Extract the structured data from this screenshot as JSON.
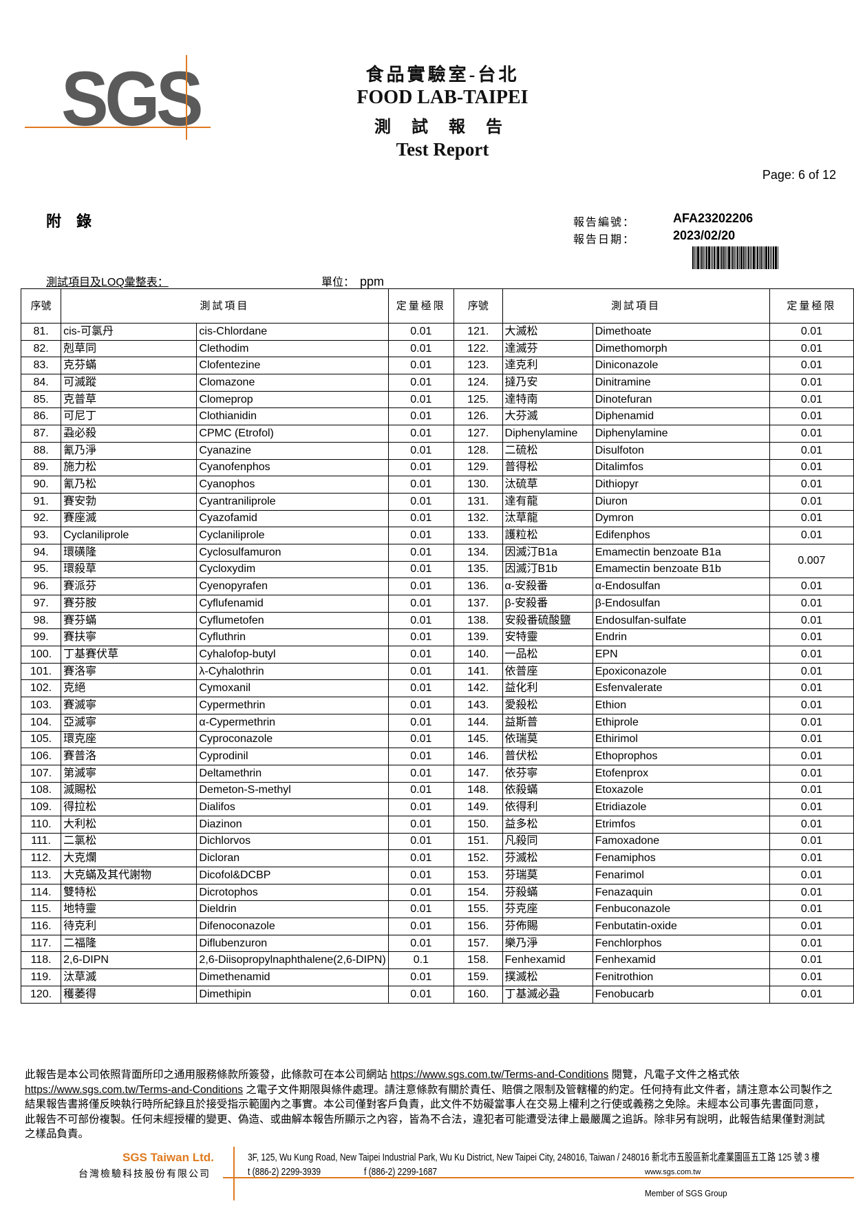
{
  "header": {
    "logo_text": "SGS",
    "title_zh": "食品實驗室-台北",
    "title_en": "FOOD LAB-TAIPEI",
    "report_zh": "測 試 報 告",
    "report_en": "Test Report",
    "page": "Page: 6 of 12"
  },
  "meta": {
    "appendix": "附錄",
    "report_no_label": "報告編號：",
    "report_no": "AFA23202206",
    "report_date_label": "報告日期：",
    "report_date": "2023/02/20",
    "section_title": "測試項目及LOQ彙整表：",
    "unit_label": "單位：",
    "unit": "ppm"
  },
  "table": {
    "headers": {
      "seq": "序號",
      "item": "測試項目",
      "loq": "定量極限"
    },
    "left": [
      [
        "81.",
        "cis-可氯丹",
        "cis-Chlordane",
        "0.01"
      ],
      [
        "82.",
        "剋草同",
        "Clethodim",
        "0.01"
      ],
      [
        "83.",
        "克芬蟎",
        "Clofentezine",
        "0.01"
      ],
      [
        "84.",
        "可滅蹤",
        "Clomazone",
        "0.01"
      ],
      [
        "85.",
        "克普草",
        "Clomeprop",
        "0.01"
      ],
      [
        "86.",
        "可尼丁",
        "Clothianidin",
        "0.01"
      ],
      [
        "87.",
        "蝨必殺",
        "CPMC (Etrofol)",
        "0.01"
      ],
      [
        "88.",
        "氰乃淨",
        "Cyanazine",
        "0.01"
      ],
      [
        "89.",
        "施力松",
        "Cyanofenphos",
        "0.01"
      ],
      [
        "90.",
        "氰乃松",
        "Cyanophos",
        "0.01"
      ],
      [
        "91.",
        "賽安勃",
        "Cyantraniliprole",
        "0.01"
      ],
      [
        "92.",
        "賽座滅",
        "Cyazofamid",
        "0.01"
      ],
      [
        "93.",
        "Cyclaniliprole",
        "Cyclaniliprole",
        "0.01"
      ],
      [
        "94.",
        "環磺隆",
        "Cyclosulfamuron",
        "0.01"
      ],
      [
        "95.",
        "環殺草",
        "Cycloxydim",
        "0.01"
      ],
      [
        "96.",
        "賽派芬",
        "Cyenopyrafen",
        "0.01"
      ],
      [
        "97.",
        "賽芬胺",
        "Cyflufenamid",
        "0.01"
      ],
      [
        "98.",
        "賽芬蟎",
        "Cyflumetofen",
        "0.01"
      ],
      [
        "99.",
        "賽扶寧",
        "Cyfluthrin",
        "0.01"
      ],
      [
        "100.",
        "丁基賽伏草",
        "Cyhalofop-butyl",
        "0.01"
      ],
      [
        "101.",
        "賽洛寧",
        "λ-Cyhalothrin",
        "0.01"
      ],
      [
        "102.",
        "克絕",
        "Cymoxanil",
        "0.01"
      ],
      [
        "103.",
        "賽滅寧",
        "Cypermethrin",
        "0.01"
      ],
      [
        "104.",
        "亞滅寧",
        "α-Cypermethrin",
        "0.01"
      ],
      [
        "105.",
        "環克座",
        "Cyproconazole",
        "0.01"
      ],
      [
        "106.",
        "賽普洛",
        "Cyprodinil",
        "0.01"
      ],
      [
        "107.",
        "第滅寧",
        "Deltamethrin",
        "0.01"
      ],
      [
        "108.",
        "滅賜松",
        "Demeton-S-methyl",
        "0.01"
      ],
      [
        "109.",
        "得拉松",
        "Dialifos",
        "0.01"
      ],
      [
        "110.",
        "大利松",
        "Diazinon",
        "0.01"
      ],
      [
        "111.",
        "二氯松",
        "Dichlorvos",
        "0.01"
      ],
      [
        "112.",
        "大克爛",
        "Dicloran",
        "0.01"
      ],
      [
        "113.",
        "大克蟎及其代謝物",
        "Dicofol&DCBP",
        "0.01"
      ],
      [
        "114.",
        "雙特松",
        "Dicrotophos",
        "0.01"
      ],
      [
        "115.",
        "地特靈",
        "Dieldrin",
        "0.01"
      ],
      [
        "116.",
        "待克利",
        "Difenoconazole",
        "0.01"
      ],
      [
        "117.",
        "二福隆",
        "Diflubenzuron",
        "0.01"
      ],
      [
        "118.",
        "2,6-DIPN",
        "2,6-Diisopropylnaphthalene(2,6-DIPN)",
        "0.1"
      ],
      [
        "119.",
        "汰草滅",
        "Dimethenamid",
        "0.01"
      ],
      [
        "120.",
        "穫萎得",
        "Dimethipin",
        "0.01"
      ]
    ],
    "right": [
      [
        "121.",
        "大滅松",
        "Dimethoate",
        "0.01"
      ],
      [
        "122.",
        "達滅芬",
        "Dimethomorph",
        "0.01"
      ],
      [
        "123.",
        "達克利",
        "Diniconazole",
        "0.01"
      ],
      [
        "124.",
        "撻乃安",
        "Dinitramine",
        "0.01"
      ],
      [
        "125.",
        "達特南",
        "Dinotefuran",
        "0.01"
      ],
      [
        "126.",
        "大芬滅",
        "Diphenamid",
        "0.01"
      ],
      [
        "127.",
        "Diphenylamine",
        "Diphenylamine",
        "0.01"
      ],
      [
        "128.",
        "二硫松",
        "Disulfoton",
        "0.01"
      ],
      [
        "129.",
        "普得松",
        "Ditalimfos",
        "0.01"
      ],
      [
        "130.",
        "汰硫草",
        "Dithiopyr",
        "0.01"
      ],
      [
        "131.",
        "達有龍",
        "Diuron",
        "0.01"
      ],
      [
        "132.",
        "汰草龍",
        "Dymron",
        "0.01"
      ],
      [
        "133.",
        "護粒松",
        "Edifenphos",
        "0.01"
      ],
      [
        "134.",
        "因滅汀B1a",
        "Emamectin benzoate B1a",
        "0.007"
      ],
      [
        "135.",
        "因滅汀B1b",
        "Emamectin benzoate B1b",
        null
      ],
      [
        "136.",
        "α-安殺番",
        "α-Endosulfan",
        "0.01"
      ],
      [
        "137.",
        "β-安殺番",
        "β-Endosulfan",
        "0.01"
      ],
      [
        "138.",
        "安殺番硫酸鹽",
        "Endosulfan-sulfate",
        "0.01"
      ],
      [
        "139.",
        "安特靈",
        "Endrin",
        "0.01"
      ],
      [
        "140.",
        "一品松",
        "EPN",
        "0.01"
      ],
      [
        "141.",
        "依普座",
        "Epoxiconazole",
        "0.01"
      ],
      [
        "142.",
        "益化利",
        "Esfenvalerate",
        "0.01"
      ],
      [
        "143.",
        "愛殺松",
        "Ethion",
        "0.01"
      ],
      [
        "144.",
        "益斯普",
        "Ethiprole",
        "0.01"
      ],
      [
        "145.",
        "依瑞莫",
        "Ethirimol",
        "0.01"
      ],
      [
        "146.",
        "普伏松",
        "Ethoprophos",
        "0.01"
      ],
      [
        "147.",
        "依芬寧",
        "Etofenprox",
        "0.01"
      ],
      [
        "148.",
        "依殺蟎",
        "Etoxazole",
        "0.01"
      ],
      [
        "149.",
        "依得利",
        "Etridiazole",
        "0.01"
      ],
      [
        "150.",
        "益多松",
        "Etrimfos",
        "0.01"
      ],
      [
        "151.",
        "凡殺同",
        "Famoxadone",
        "0.01"
      ],
      [
        "152.",
        "芬滅松",
        "Fenamiphos",
        "0.01"
      ],
      [
        "153.",
        "芬瑞莫",
        "Fenarimol",
        "0.01"
      ],
      [
        "154.",
        "芬殺蟎",
        "Fenazaquin",
        "0.01"
      ],
      [
        "155.",
        "芬克座",
        "Fenbuconazole",
        "0.01"
      ],
      [
        "156.",
        "芬佈賜",
        "Fenbutatin-oxide",
        "0.01"
      ],
      [
        "157.",
        "樂乃淨",
        "Fenchlorphos",
        "0.01"
      ],
      [
        "158.",
        "Fenhexamid",
        "Fenhexamid",
        "0.01"
      ],
      [
        "159.",
        "撲滅松",
        "Fenitrothion",
        "0.01"
      ],
      [
        "160.",
        "丁基滅必蝨",
        "Fenobucarb",
        "0.01"
      ]
    ]
  },
  "footer": {
    "disclaimer_1": "此報告是本公司依照背面所印之通用服務條款所簽發，此條款可在本公司網站 ",
    "link_1": "https://www.sgs.com.tw/Terms-and-Conditions",
    "disclaimer_2": " 閱覽，凡電子文件之格式依 ",
    "link_2": "https://www.sgs.com.tw/Terms-and-Conditions",
    "disclaimer_3": " 之電子文件期限與條件處理。請注意條款有關於責任、賠償之限制及管轄權的約定。任何持有此文件者，請注意本公司製作之結果報告書將僅反映執行時所紀錄且於接受指示範圍內之事實。本公司僅對客戶負責，此文件不妨礙當事人在交易上權利之行使或義務之免除。未經本公司事先書面同意，此報告不可部份複製。任何未經授權的變更、偽造、或曲解本報告所顯示之內容，皆為不合法，違犯者可能遭受法律上最嚴厲之追訴。除非另有說明，此報告結果僅對測試之樣品負責。",
    "company_en": "SGS Taiwan Ltd.",
    "company_zh": "台灣檢驗科技股份有限公司",
    "address": "3F, 125, Wu Kung Road, New Taipei Industrial Park, Wu Ku District, New Taipei City, 248016, Taiwan / 248016 新北市五股區新北產業園區五工路 125 號 3 樓",
    "tel": "t (886-2) 2299-3939",
    "fax": "f (886-2) 2299-1687",
    "website": "www.sgs.com.tw",
    "member": "Member of SGS Group"
  },
  "colors": {
    "accent": "#e07a1f",
    "logo": "#5a5a5a"
  }
}
